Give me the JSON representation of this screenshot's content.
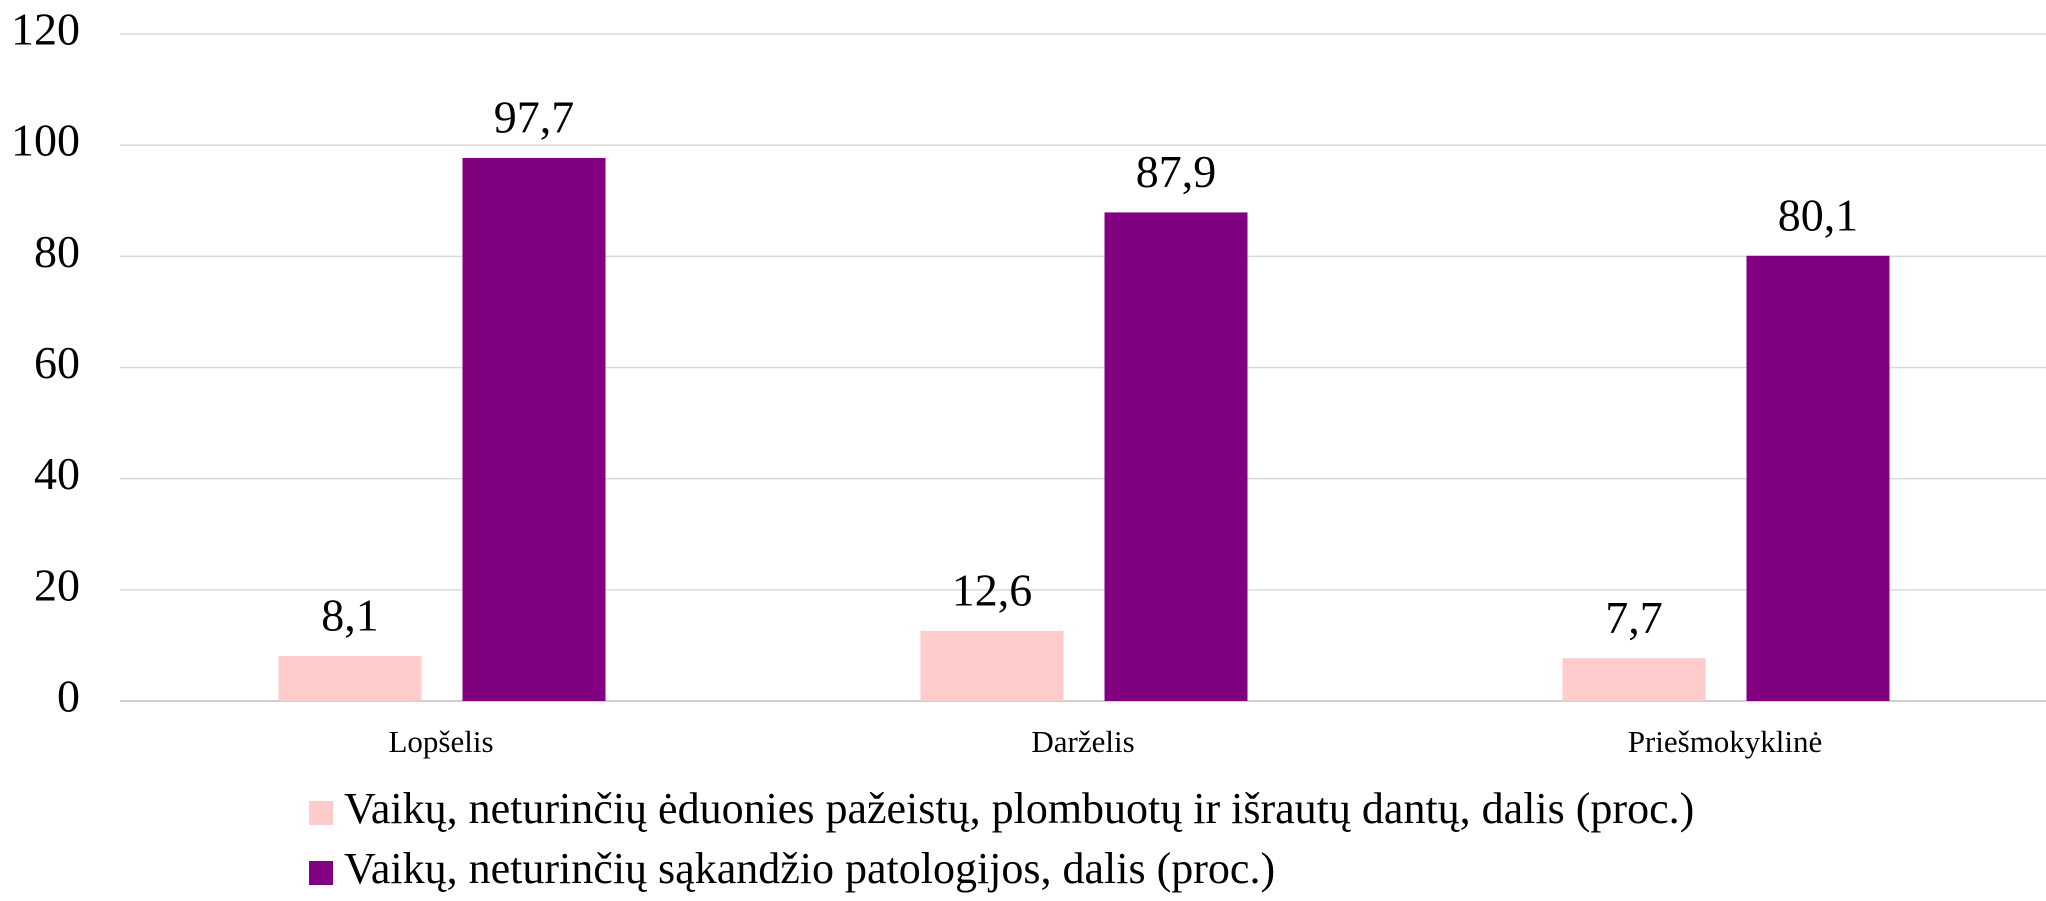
{
  "chart_data": {
    "type": "bar",
    "categories": [
      "Lopšelis",
      "Darželis",
      "Priešmokyklinė"
    ],
    "series": [
      {
        "name": "Vaikų, neturinčių ėduonies pažeistų, plombuotų ir išrautų dantų, dalis (proc.)",
        "color": "#ffcccc",
        "values": [
          8.1,
          12.6,
          7.7
        ],
        "value_labels": [
          "8,1",
          "12,6",
          "7,7"
        ]
      },
      {
        "name": "Vaikų, neturinčių sąkandžio patologijos, dalis (proc.)",
        "color": "#800080",
        "values": [
          97.7,
          87.9,
          80.1
        ],
        "value_labels": [
          "97,7",
          "87,9",
          "80,1"
        ]
      }
    ],
    "ylim": [
      0,
      120
    ],
    "yticks": [
      0,
      20,
      40,
      60,
      80,
      100,
      120
    ],
    "grid": true,
    "legend": "bottom"
  }
}
